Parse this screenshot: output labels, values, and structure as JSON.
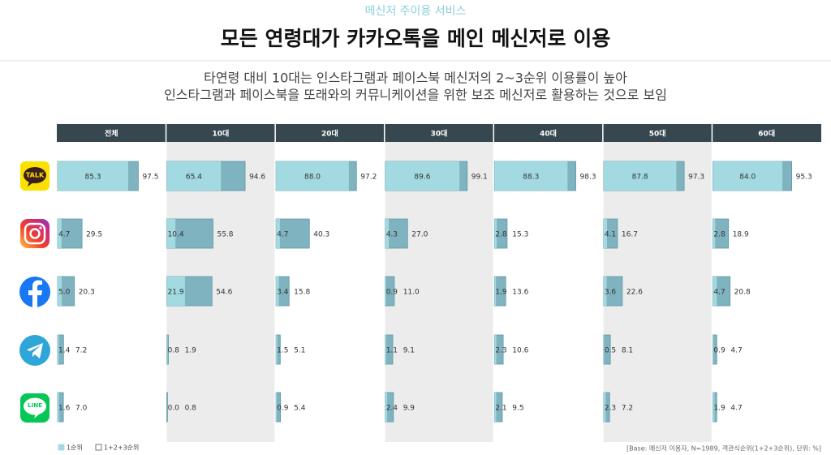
{
  "chart_data": {
    "type": "bar",
    "kicker": "메신저 주이용 서비스",
    "title": "모든 연령대가 카카오톡을 메인 메신저로 이용",
    "subtitle": [
      "타연령 대비 10대는 인스타그램과 페이스북 메신저의 2~3순위 이용률이 높아",
      "인스타그램과 페이스북을 또래와의 커뮤니케이션을 위한 보조 메신저로 활용하는 것으로 보임"
    ],
    "categories": [
      "전체",
      "10대",
      "20대",
      "30대",
      "40대",
      "50대",
      "60대"
    ],
    "rows": [
      "TALK",
      null,
      null,
      null,
      "LINE"
    ],
    "xlim": [
      0,
      100
    ],
    "series": [
      {
        "name": "1순위",
        "color": "#a3d9e1",
        "values": [
          [
            85.3,
            65.4,
            88.0,
            89.6,
            88.3,
            87.8,
            84.0
          ],
          [
            4.7,
            10.4,
            4.7,
            4.3,
            2.8,
            4.1,
            2.8
          ],
          [
            5.0,
            21.9,
            3.4,
            0.9,
            1.9,
            3.6,
            4.7
          ],
          [
            1.4,
            0.8,
            1.5,
            1.1,
            2.3,
            0.5,
            0.9
          ],
          [
            1.6,
            0.0,
            0.9,
            2.4,
            2.1,
            2.3,
            1.9
          ]
        ],
        "value_labels": [
          [
            "85.3",
            "65.4",
            "88.0",
            "89.6",
            "88.3",
            "87.8",
            "84.0"
          ],
          [
            "4.7",
            "10.4",
            "4.7",
            "4.3",
            "2.8",
            "4.1",
            "2.8"
          ],
          [
            "5.0",
            "21.9",
            "3.4",
            "0.9",
            "1.9",
            "3.6",
            "4.7"
          ],
          [
            "1.4",
            "0.8",
            "1.5",
            "1.1",
            "2.3",
            "0.5",
            "0.9"
          ],
          [
            "1.6",
            "0.0",
            "0.9",
            "2.4",
            "2.1",
            "2.3",
            "1.9"
          ]
        ]
      },
      {
        "name": "1+2+3순위",
        "color": "#7fb3bf",
        "values": [
          [
            97.5,
            94.6,
            97.2,
            99.1,
            98.3,
            97.3,
            95.3
          ],
          [
            29.5,
            55.8,
            40.3,
            27.0,
            15.3,
            16.7,
            18.9
          ],
          [
            20.3,
            54.6,
            15.8,
            11.0,
            13.6,
            22.6,
            20.8
          ],
          [
            7.2,
            1.9,
            5.1,
            9.1,
            10.6,
            8.1,
            4.7
          ],
          [
            7.0,
            0.8,
            5.4,
            9.9,
            9.5,
            7.2,
            4.7
          ]
        ],
        "value_labels": [
          [
            "97.5",
            "94.6",
            "97.2",
            "99.1",
            "98.3",
            "97.3",
            "95.3"
          ],
          [
            "29.5",
            "55.8",
            "40.3",
            "27.0",
            "15.3",
            "16.7",
            "18.9"
          ],
          [
            "20.3",
            "54.6",
            "15.8",
            "11.0",
            "13.6",
            "22.6",
            "20.8"
          ],
          [
            "7.2",
            "1.9",
            "5.1",
            "9.1",
            "10.6",
            "8.1",
            "4.7"
          ],
          [
            "7.0",
            "0.8",
            "5.4",
            "9.9",
            "9.5",
            "7.2",
            "4.7"
          ]
        ]
      }
    ],
    "footnote": "[Base: 메신저 이용자, N=1989, 객관식순위(1+2+3순위), 단위: %]"
  }
}
